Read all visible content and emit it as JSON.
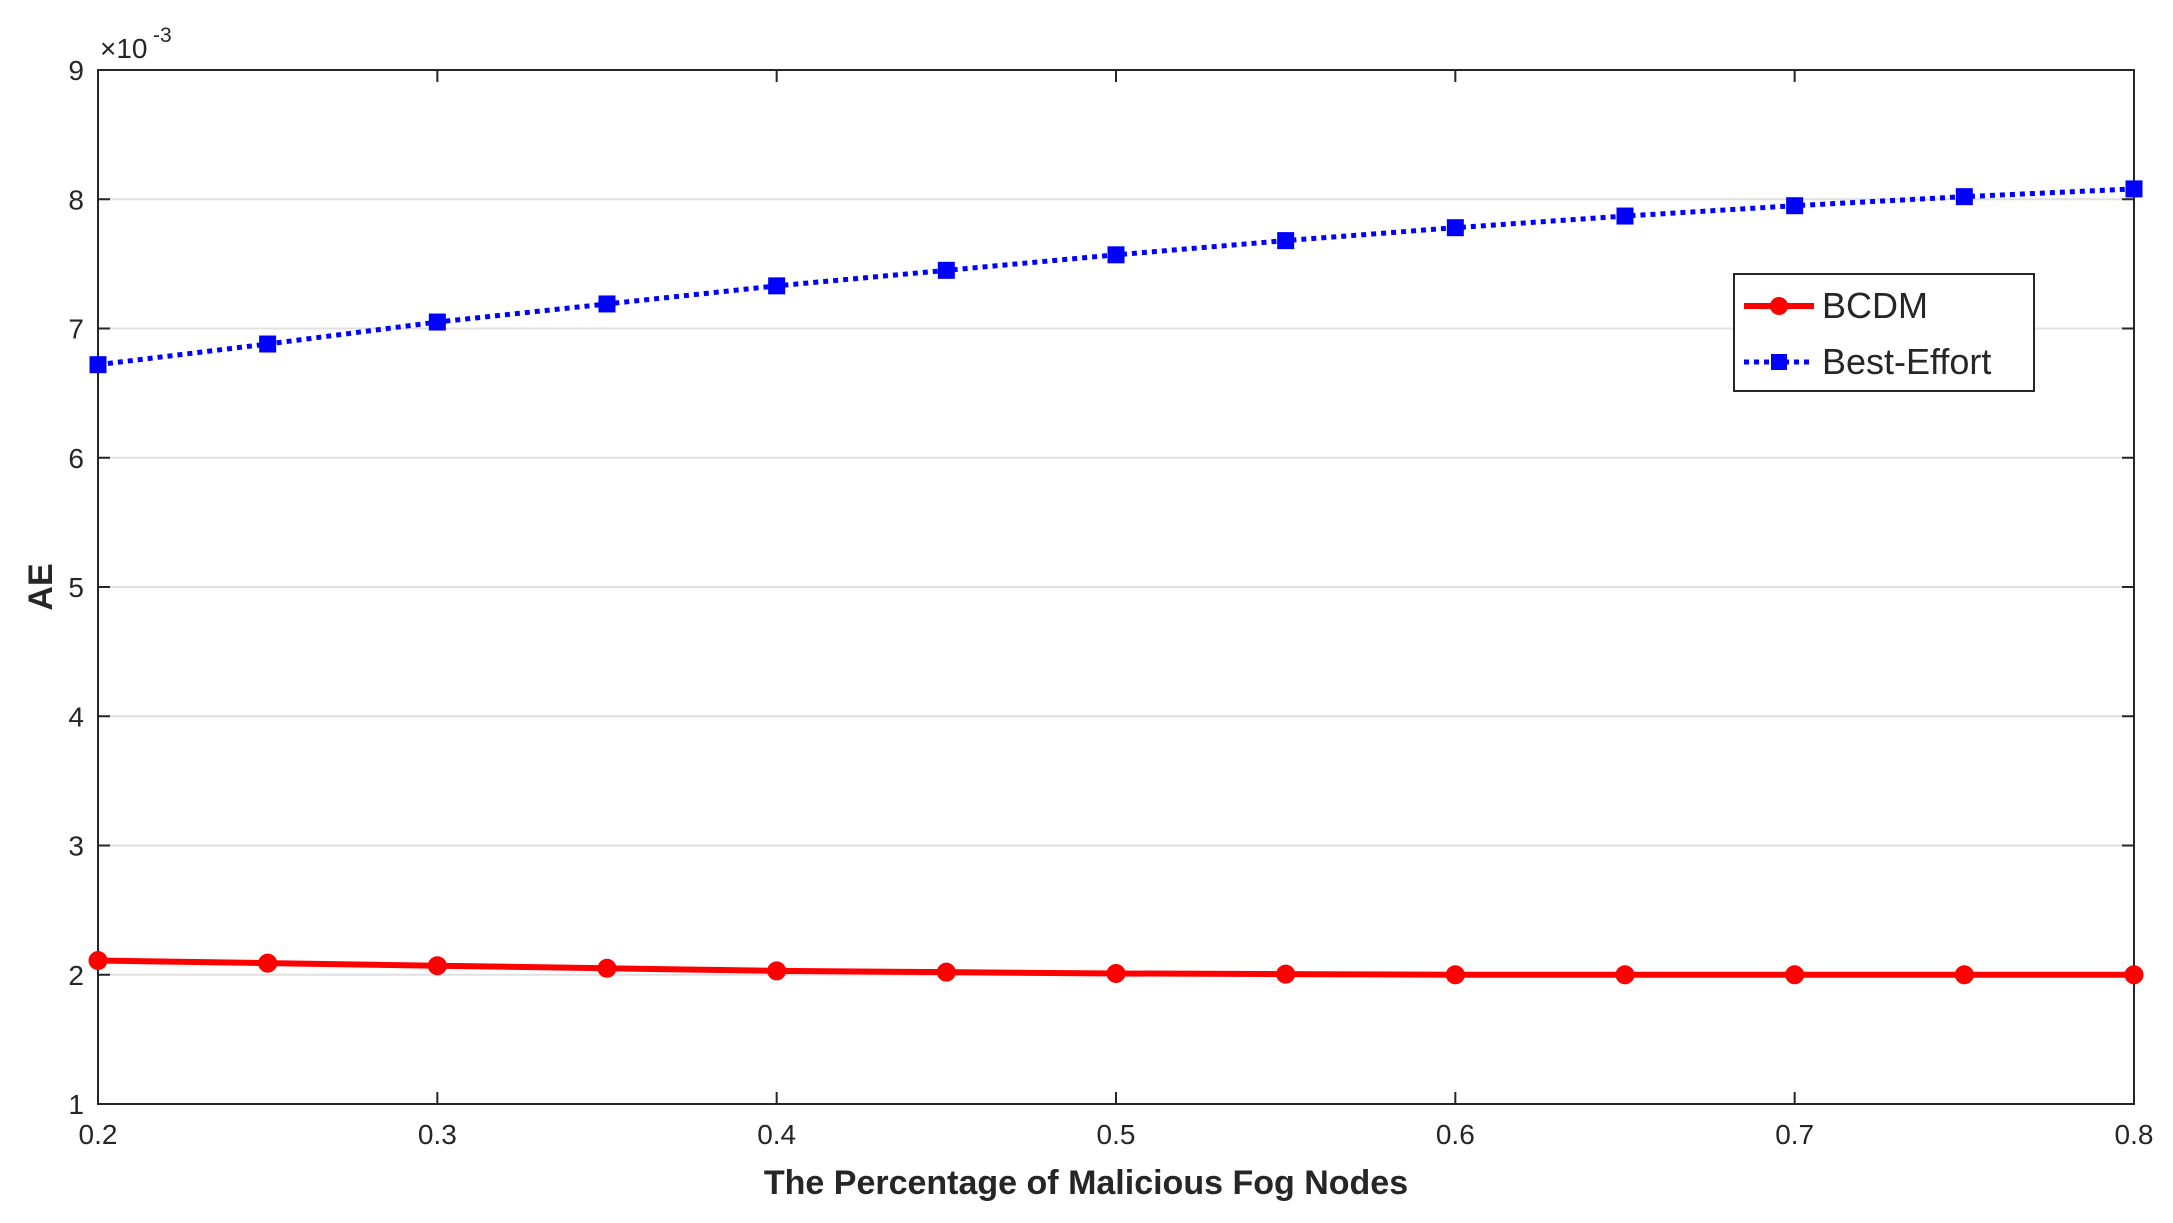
{
  "chart_data": {
    "type": "line",
    "x_label": "The Percentage of Malicious Fog Nodes",
    "y_label": "AE",
    "y_multiplier_base": "×10",
    "y_multiplier_exponent": "-3",
    "x": [
      0.2,
      0.25,
      0.3,
      0.35,
      0.4,
      0.45,
      0.5,
      0.55,
      0.6,
      0.65,
      0.7,
      0.75,
      0.8
    ],
    "series": [
      {
        "name": "BCDM",
        "color": "#ff0000",
        "line_style": "solid",
        "marker": "circle",
        "values": [
          2.11,
          2.09,
          2.07,
          2.05,
          2.03,
          2.02,
          2.01,
          2.005,
          2.0,
          2.0,
          2.0,
          2.0,
          2.0
        ]
      },
      {
        "name": "Best-Effort",
        "color": "#0000ff",
        "line_style": "dotted",
        "marker": "square",
        "values": [
          6.72,
          6.88,
          7.05,
          7.19,
          7.33,
          7.45,
          7.57,
          7.68,
          7.78,
          7.87,
          7.95,
          8.02,
          8.08
        ]
      }
    ],
    "xlim": [
      0.2,
      0.8
    ],
    "xticks": [
      0.2,
      0.3,
      0.4,
      0.5,
      0.6,
      0.7,
      0.8
    ],
    "ylim": [
      1,
      9
    ],
    "yticks": [
      1,
      2,
      3,
      4,
      5,
      6,
      7,
      8,
      9
    ],
    "grid": "horizontal",
    "legend_position": "upper right"
  }
}
